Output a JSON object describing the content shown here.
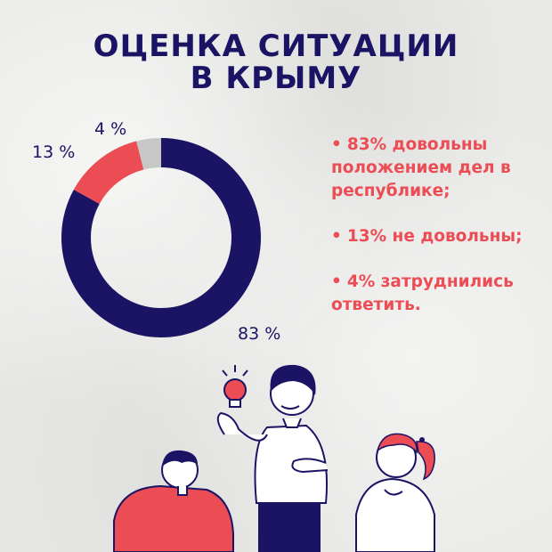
{
  "title": {
    "line1": "ОЦЕНКА СИТУАЦИИ",
    "line2": "В КРЫМУ"
  },
  "colors": {
    "navy": "#1b1464",
    "red": "#ec4d55",
    "gray": "#c7c7c7"
  },
  "chart_data": {
    "type": "pie",
    "donut": true,
    "slices": [
      {
        "label": "83 %",
        "value": 83,
        "color": "#1b1464"
      },
      {
        "label": "13 %",
        "value": 13,
        "color": "#ec4d55"
      },
      {
        "label": "4 %",
        "value": 4,
        "color": "#c7c7c7"
      }
    ],
    "legend": "none"
  },
  "bullets": [
    {
      "text": "83% довольны положением дел в республике;"
    },
    {
      "text": "13% не довольны;"
    },
    {
      "text": "4% затруднились ответить."
    }
  ],
  "bullet_glyph": "•",
  "illustration": {
    "icon": "lightbulb-icon",
    "people": [
      "person-left-red-shirt",
      "person-center-white-shirt",
      "person-right-ponytail"
    ]
  }
}
